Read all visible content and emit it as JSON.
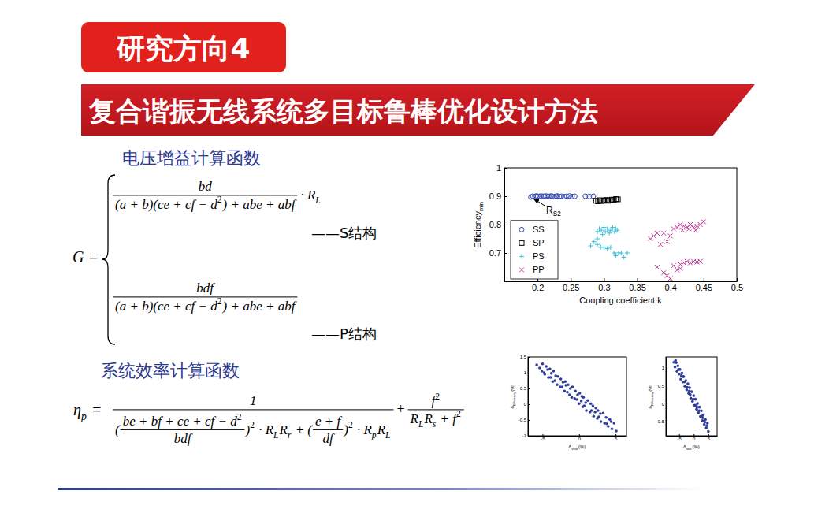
{
  "header": {
    "tag": "研究方向4",
    "title": "复合谐振无线系统多目标鲁棒优化设计方法"
  },
  "gain": {
    "heading": "电压增益计算函数",
    "lhs": [
      "G ="
    ],
    "cases": [
      {
        "numerator": [
          "bd"
        ],
        "denominator": [
          "(a + b)(ce + cf − d",
          {
            "sup": "2"
          },
          ") + abe + abf"
        ],
        "factor": [
          "· R",
          {
            "sub": "L"
          }
        ],
        "note": "——S结构"
      },
      {
        "numerator": [
          "bdf"
        ],
        "denominator": [
          "(a + b)(ce + cf − d",
          {
            "sup": "2"
          },
          ") + abe + abf"
        ],
        "note": "——P结构"
      }
    ]
  },
  "efficiency": {
    "heading": "系统效率计算函数",
    "lhs": [
      "η",
      {
        "sub": "p"
      },
      " ="
    ],
    "term1": {
      "numerator": [
        "1"
      ],
      "denominator": [
        "(",
        {
          "frac": {
            "numerator": [
              "be + bf + ce + cf − d",
              {
                "sup": "2"
              }
            ],
            "denominator": [
              "bdf"
            ]
          }
        },
        ")",
        {
          "sup": "2"
        },
        " · R",
        {
          "sub": "L"
        },
        "R",
        {
          "sub": "r"
        },
        " + (",
        {
          "frac": {
            "numerator": [
              "e + f"
            ],
            "denominator": [
              "df"
            ]
          }
        },
        ")",
        {
          "sup": "2"
        },
        " · R",
        {
          "sub": "p"
        },
        "R",
        {
          "sub": "L"
        }
      ]
    },
    "plus": "+",
    "term2": {
      "numerator": [
        "f",
        {
          "sup": "2"
        }
      ],
      "denominator": [
        "R",
        {
          "sub": "L"
        },
        "R",
        {
          "sub": "s"
        },
        " + f",
        {
          "sup": "2"
        }
      ]
    }
  },
  "chart_data": [
    {
      "type": "scatter",
      "x_label": [
        "Coupling coefficient k"
      ],
      "y_label": [
        "Efficiency",
        {
          "sub": "min"
        }
      ],
      "xlim": [
        0.15,
        0.5
      ],
      "xticks": [
        0.2,
        0.25,
        0.3,
        0.35,
        0.4,
        0.45,
        0.5
      ],
      "ylim": [
        0.6,
        1
      ],
      "yticks": [
        0.7,
        0.8,
        0.9,
        1
      ],
      "legend": "lower left",
      "series": [
        {
          "name": "SS",
          "color": "#3a4fb0",
          "marker": "circle",
          "x": [
            0.19,
            0.193,
            0.196,
            0.198,
            0.2,
            0.203,
            0.205,
            0.208,
            0.21,
            0.212,
            0.215,
            0.217,
            0.22,
            0.222,
            0.225,
            0.228,
            0.23,
            0.233,
            0.236,
            0.24,
            0.244,
            0.248,
            0.252,
            0.256,
            0.272,
            0.278,
            0.284
          ],
          "y": [
            0.897,
            0.9,
            0.899,
            0.901,
            0.9,
            0.899,
            0.901,
            0.9,
            0.899,
            0.901,
            0.9,
            0.899,
            0.901,
            0.9,
            0.899,
            0.9,
            0.901,
            0.899,
            0.9,
            0.899,
            0.9,
            0.901,
            0.899,
            0.9,
            0.9,
            0.899,
            0.9
          ]
        },
        {
          "name": "SP",
          "color": "#000000",
          "marker": "square",
          "x": [
            0.288,
            0.291,
            0.294,
            0.297,
            0.3,
            0.303,
            0.306,
            0.309,
            0.312,
            0.315,
            0.318,
            0.321
          ],
          "y": [
            0.884,
            0.882,
            0.886,
            0.883,
            0.885,
            0.887,
            0.884,
            0.886,
            0.888,
            0.887,
            0.89,
            0.889
          ]
        },
        {
          "name": "PS",
          "color": "#3cbfd6",
          "marker": "plus",
          "x": [
            0.29,
            0.293,
            0.296,
            0.298,
            0.3,
            0.302,
            0.305,
            0.308,
            0.31,
            0.313,
            0.316,
            0.318,
            0.32,
            0.285,
            0.29,
            0.295,
            0.3,
            0.305,
            0.31,
            0.315,
            0.318,
            0.322,
            0.326,
            0.33,
            0.335,
            0.29,
            0.28
          ],
          "y": [
            0.775,
            0.785,
            0.78,
            0.765,
            0.79,
            0.775,
            0.785,
            0.77,
            0.78,
            0.79,
            0.775,
            0.785,
            0.78,
            0.74,
            0.73,
            0.72,
            0.72,
            0.715,
            0.72,
            0.7,
            0.69,
            0.7,
            0.7,
            0.685,
            0.7,
            0.75,
            0.725
          ]
        },
        {
          "name": "PP",
          "color": "#c0399a",
          "marker": "x",
          "x": [
            0.405,
            0.41,
            0.415,
            0.42,
            0.425,
            0.43,
            0.435,
            0.44,
            0.445,
            0.45,
            0.418,
            0.428,
            0.438,
            0.37,
            0.375,
            0.38,
            0.385,
            0.39,
            0.395,
            0.4,
            0.38,
            0.39,
            0.4,
            0.395,
            0.415,
            0.42,
            0.425,
            0.43,
            0.435,
            0.44,
            0.445,
            0.41,
            0.415,
            0.405
          ],
          "y": [
            0.785,
            0.79,
            0.8,
            0.795,
            0.79,
            0.8,
            0.79,
            0.795,
            0.8,
            0.81,
            0.78,
            0.785,
            0.78,
            0.75,
            0.76,
            0.77,
            0.73,
            0.77,
            0.74,
            0.76,
            0.65,
            0.63,
            0.61,
            0.62,
            0.66,
            0.665,
            0.67,
            0.665,
            0.67,
            0.668,
            0.67,
            0.64,
            0.645,
            0.655
          ]
        }
      ],
      "annotations": [
        {
          "text": [
            "R",
            {
              "sub": "S2"
            }
          ],
          "x": 0.213,
          "y": 0.84,
          "point": [
            0.193,
            0.893
          ]
        }
      ]
    },
    {
      "type": "scatter",
      "x_label": [
        "δ",
        {
          "sub": "Vout"
        },
        "(%)"
      ],
      "y_label": [
        "δ",
        {
          "sub": "Efficiency"
        },
        "(%)"
      ],
      "xlim": [
        -7,
        6.5
      ],
      "xticks": [
        -5,
        0,
        5
      ],
      "ylim": [
        -1,
        1.5
      ],
      "yticks": [
        -1,
        -0.5,
        0,
        0.5,
        1,
        1.5
      ],
      "series": [
        {
          "color": "#2e3d9a",
          "marker": "dot",
          "x": [
            -5.8,
            -5.4,
            -5.1,
            -5.0,
            -4.7,
            -4.5,
            -4.2,
            -4.0,
            -3.8,
            -3.6,
            -3.5,
            -3.2,
            -3.0,
            -2.9,
            -2.6,
            -2.5,
            -2.2,
            -2.0,
            -1.9,
            -1.6,
            -1.5,
            -1.2,
            -1.0,
            -0.9,
            -0.6,
            -0.5,
            -0.2,
            0,
            0.1,
            0.3,
            0.5,
            0.6,
            0.9,
            1.0,
            1.2,
            1.5,
            1.6,
            1.9,
            2.0,
            2.3,
            2.5,
            2.6,
            2.9,
            3.0,
            3.3,
            3.5,
            3.7,
            4.0,
            4.2,
            4.5,
            4.8,
            5.1,
            -4.8,
            -4.3,
            -3.3,
            -2.3,
            -1.3,
            -0.3,
            0.7,
            1.7,
            2.7,
            3.8,
            -1.8,
            0.4,
            2.2,
            4.4,
            -3.9
          ],
          "y": [
            1.25,
            1.15,
            1.05,
            1.28,
            0.95,
            1.2,
            0.85,
            1.12,
            0.98,
            0.72,
            1.05,
            0.9,
            0.62,
            0.88,
            0.55,
            0.8,
            0.7,
            0.42,
            0.72,
            0.38,
            0.62,
            0.5,
            0.22,
            0.55,
            0.18,
            0.42,
            0.3,
            0.02,
            0.35,
            0.1,
            -0.08,
            0.22,
            0.05,
            -0.2,
            0.12,
            -0.25,
            0.02,
            -0.05,
            -0.38,
            -0.12,
            -0.45,
            -0.2,
            -0.3,
            -0.55,
            -0.28,
            -0.6,
            -0.42,
            -0.7,
            -0.48,
            -0.78,
            -0.6,
            -0.85,
            1.0,
            1.1,
            0.75,
            0.55,
            0.3,
            0.15,
            -0.05,
            -0.2,
            -0.4,
            -0.62,
            0.6,
            0.25,
            -0.25,
            -0.55,
            0.85
          ]
        }
      ]
    },
    {
      "type": "scatter",
      "x_label": [
        "δ",
        {
          "sub": "Iout"
        },
        "(%)"
      ],
      "y_label": [
        "δ",
        {
          "sub": "Efficiency"
        },
        "(%)"
      ],
      "xlim": [
        -9.5,
        8
      ],
      "xticks": [
        -5,
        0,
        5
      ],
      "ylim": [
        -0.9,
        1.3
      ],
      "yticks": [
        -0.5,
        0,
        0.5,
        1
      ],
      "series": [
        {
          "color": "#2e3d9a",
          "marker": "dot",
          "x": [
            -6.8,
            -6.4,
            -6.0,
            -5.7,
            -5.4,
            -5.0,
            -4.7,
            -4.4,
            -4.0,
            -3.7,
            -3.4,
            -3.0,
            -2.7,
            -2.4,
            -2.0,
            -1.7,
            -1.4,
            -1.0,
            -0.7,
            -0.4,
            0,
            0.3,
            0.6,
            1.0,
            1.3,
            1.6,
            2.0,
            2.3,
            2.6,
            3.0,
            3.3,
            3.6,
            4.0,
            4.3,
            4.7,
            5.0,
            -6.2,
            -5.2,
            -4.2,
            -3.2,
            -2.2,
            -1.2,
            -0.2,
            0.8,
            1.8,
            2.8,
            3.8,
            4.5,
            -3.6,
            -1.5,
            1.1,
            3.1
          ],
          "y": [
            1.15,
            1.02,
            1.14,
            0.9,
            1.05,
            0.82,
            0.95,
            0.68,
            0.85,
            0.6,
            0.75,
            0.48,
            0.64,
            0.38,
            0.55,
            0.28,
            0.44,
            0.15,
            0.33,
            0.06,
            0.22,
            -0.05,
            0.12,
            -0.16,
            0,
            -0.26,
            -0.1,
            -0.36,
            -0.2,
            -0.48,
            -0.32,
            -0.58,
            -0.45,
            -0.68,
            -0.55,
            -0.78,
            1.2,
            0.95,
            0.78,
            0.6,
            0.45,
            0.25,
            0.12,
            -0.05,
            -0.2,
            -0.35,
            -0.52,
            -0.62,
            0.75,
            0.35,
            -0.1,
            -0.4
          ]
        }
      ]
    }
  ]
}
